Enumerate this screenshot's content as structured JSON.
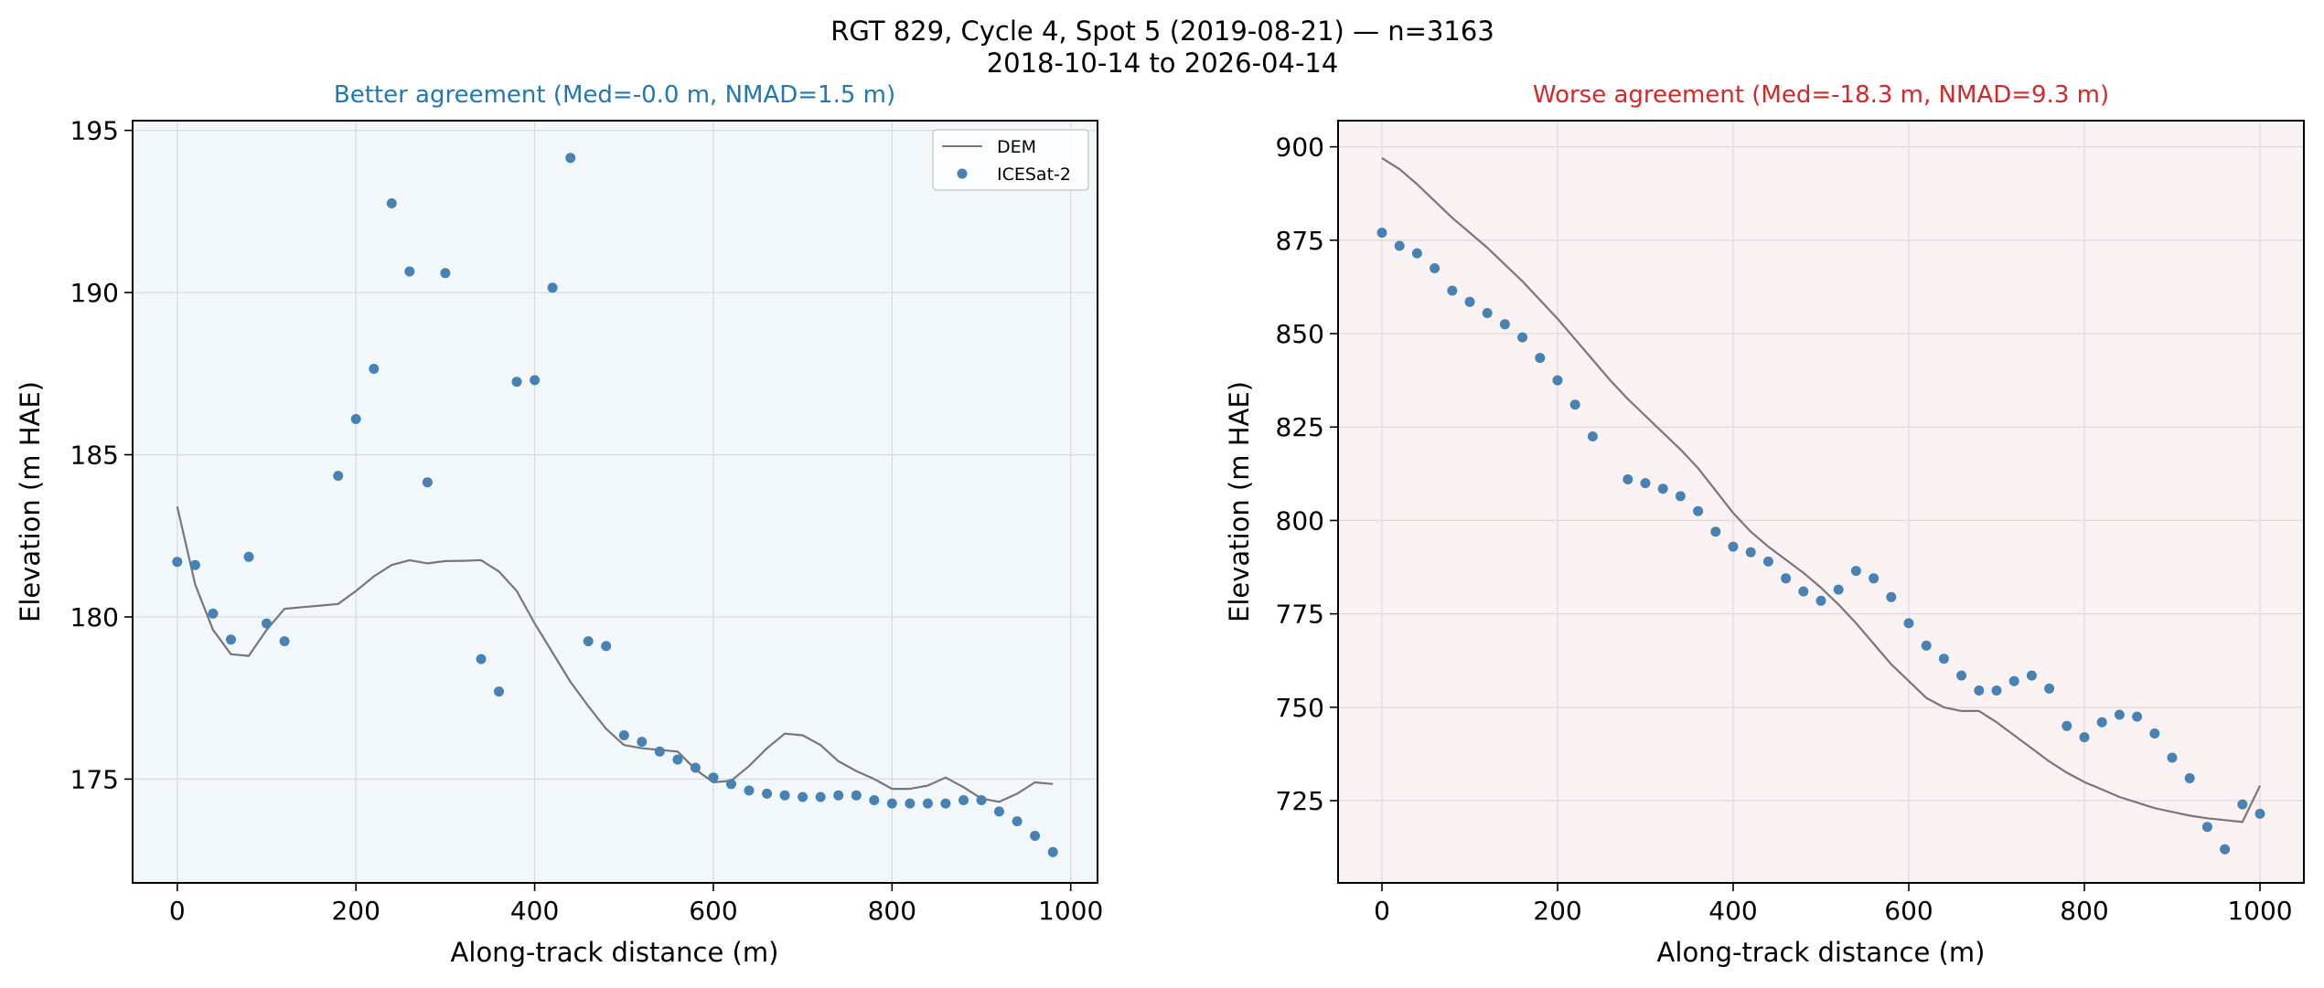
{
  "figure": {
    "title_line1": "RGT 829, Cycle 4, Spot 5 (2019-08-21) — n=3163",
    "title_line2": "2018-10-14 to 2026-04-14"
  },
  "colors": {
    "dem_line": "#777777",
    "icesat_points": "#4682b4",
    "better_title": "#1f77b4",
    "worse_title": "#d62728",
    "better_bg": "#f2f7fa",
    "worse_bg": "#faf2f2",
    "grid": "#dcdcdc"
  },
  "chart_data": [
    {
      "type": "scatter",
      "title": "Better agreement (Med=-0.0 m, NMAD=1.5 m)",
      "xlabel": "Along-track distance (m)",
      "ylabel": "Elevation (m HAE)",
      "xlim": [
        -50,
        1030
      ],
      "ylim": [
        171.8,
        195.3
      ],
      "xticks": [
        0,
        200,
        400,
        600,
        800,
        1000
      ],
      "yticks": [
        175,
        180,
        185,
        190,
        195
      ],
      "grid": true,
      "legend": "top-right",
      "series": [
        {
          "name": "DEM",
          "kind": "line",
          "x": [
            0,
            20,
            40,
            60,
            80,
            100,
            120,
            140,
            160,
            180,
            200,
            220,
            240,
            260,
            280,
            300,
            320,
            340,
            360,
            380,
            400,
            420,
            440,
            460,
            480,
            500,
            520,
            540,
            560,
            580,
            600,
            620,
            640,
            660,
            680,
            700,
            720,
            740,
            760,
            780,
            800,
            820,
            840,
            860,
            880,
            900,
            920,
            940,
            960,
            980
          ],
          "y": [
            183.4,
            181.0,
            179.6,
            178.85,
            178.8,
            179.6,
            180.25,
            180.3,
            180.35,
            180.4,
            180.8,
            181.25,
            181.6,
            181.75,
            181.65,
            181.72,
            181.73,
            181.75,
            181.4,
            180.8,
            179.8,
            178.9,
            178.0,
            177.25,
            176.55,
            176.05,
            175.95,
            175.9,
            175.85,
            175.3,
            174.9,
            174.95,
            175.4,
            175.95,
            176.4,
            176.35,
            176.05,
            175.55,
            175.25,
            175.0,
            174.7,
            174.7,
            174.8,
            175.05,
            174.75,
            174.4,
            174.3,
            174.55,
            174.9,
            174.85
          ]
        },
        {
          "name": "ICESat-2",
          "kind": "points",
          "x": [
            0,
            20,
            40,
            60,
            80,
            100,
            120,
            180,
            200,
            220,
            240,
            260,
            280,
            300,
            340,
            360,
            380,
            400,
            420,
            440,
            460,
            480,
            500,
            520,
            540,
            560,
            580,
            600,
            620,
            640,
            660,
            680,
            700,
            720,
            740,
            760,
            780,
            800,
            820,
            840,
            860,
            880,
            900,
            920,
            940,
            960,
            980
          ],
          "y": [
            181.7,
            181.6,
            180.1,
            179.3,
            181.85,
            179.8,
            179.25,
            184.35,
            186.1,
            187.65,
            192.75,
            190.65,
            184.15,
            190.6,
            178.7,
            177.7,
            187.25,
            187.3,
            190.15,
            194.15,
            179.25,
            179.1,
            176.35,
            176.15,
            175.85,
            175.6,
            175.35,
            175.05,
            174.85,
            174.65,
            174.55,
            174.5,
            174.45,
            174.45,
            174.5,
            174.5,
            174.35,
            174.25,
            174.25,
            174.25,
            174.25,
            174.35,
            174.35,
            174.0,
            173.7,
            173.25,
            172.75
          ]
        }
      ]
    },
    {
      "type": "scatter",
      "title": "Worse agreement (Med=-18.3 m, NMAD=9.3 m)",
      "xlabel": "Along-track distance (m)",
      "ylabel": "Elevation (m HAE)",
      "xlim": [
        -50,
        1050
      ],
      "ylim": [
        703,
        907
      ],
      "xticks": [
        0,
        200,
        400,
        600,
        800,
        1000
      ],
      "yticks": [
        725,
        750,
        775,
        800,
        825,
        850,
        875,
        900
      ],
      "grid": true,
      "series": [
        {
          "name": "DEM",
          "kind": "line",
          "x": [
            0,
            20,
            40,
            60,
            80,
            100,
            120,
            140,
            160,
            180,
            200,
            220,
            240,
            260,
            280,
            300,
            320,
            340,
            360,
            380,
            400,
            420,
            440,
            460,
            480,
            500,
            520,
            540,
            560,
            580,
            600,
            620,
            640,
            660,
            680,
            700,
            720,
            740,
            760,
            780,
            800,
            820,
            840,
            860,
            880,
            900,
            920,
            940,
            960,
            980,
            1000
          ],
          "y": [
            897,
            894,
            890,
            885.5,
            881,
            877,
            873,
            868.5,
            864,
            859,
            854,
            848.5,
            843,
            837.5,
            832.5,
            828,
            823.5,
            819,
            814,
            808,
            802,
            797,
            793,
            789.5,
            786,
            782,
            777.5,
            772.5,
            767,
            761.5,
            757,
            752.5,
            750,
            749,
            749,
            746,
            742.5,
            739,
            735.5,
            732.5,
            730,
            728,
            726,
            724.5,
            723,
            722,
            721,
            720.3,
            719.8,
            719.3,
            729
          ]
        },
        {
          "name": "ICESat-2",
          "kind": "points",
          "x": [
            0,
            20,
            40,
            60,
            80,
            100,
            120,
            140,
            160,
            180,
            200,
            220,
            240,
            280,
            300,
            320,
            340,
            360,
            380,
            400,
            420,
            440,
            460,
            480,
            500,
            520,
            540,
            560,
            580,
            600,
            620,
            640,
            660,
            680,
            700,
            720,
            740,
            760,
            780,
            800,
            820,
            840,
            860,
            880,
            900,
            920,
            940,
            960,
            980,
            1000
          ],
          "y": [
            877,
            873.5,
            871.5,
            867.5,
            861.5,
            858.5,
            855.5,
            852.5,
            849,
            843.5,
            837.5,
            831,
            822.5,
            811,
            810,
            808.5,
            806.5,
            802.5,
            797,
            793,
            791.5,
            789,
            784.5,
            781,
            778.5,
            781.5,
            786.5,
            784.5,
            779.5,
            772.5,
            766.5,
            763,
            758.5,
            754.5,
            754.5,
            757,
            758.5,
            755,
            745,
            742,
            746,
            748,
            747.5,
            743,
            736.5,
            731,
            718,
            712,
            724,
            721.5
          ]
        }
      ]
    }
  ]
}
